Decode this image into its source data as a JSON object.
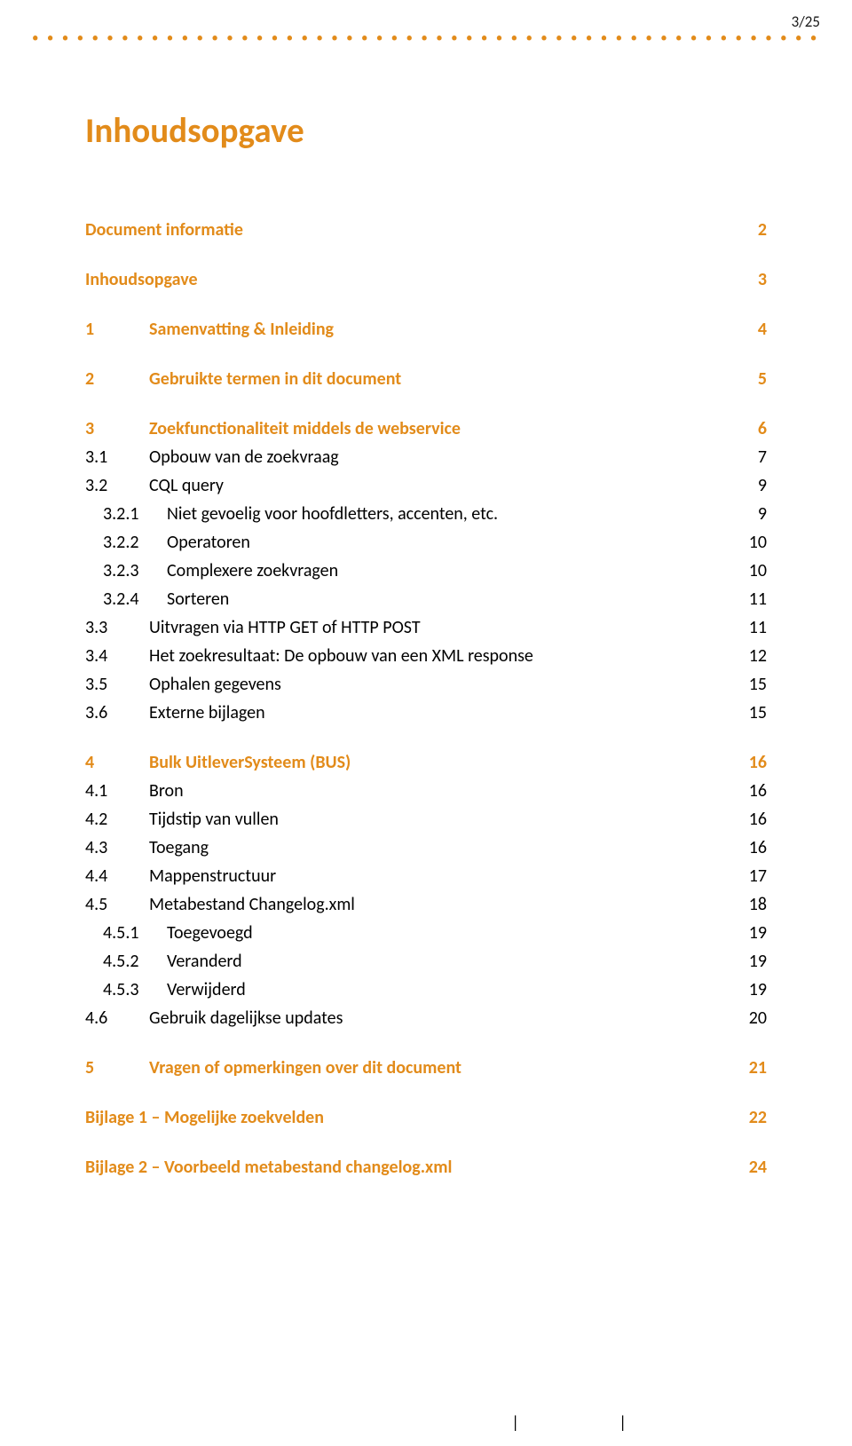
{
  "page_indicator": "3/25",
  "title": "Inhoudsopgave",
  "colors": {
    "accent": "#e28b1a",
    "text": "#000000",
    "background": "#ffffff"
  },
  "toc": {
    "groups": [
      {
        "top": {
          "num": "",
          "label": "Document informatie",
          "page": "2"
        },
        "items": []
      },
      {
        "top": {
          "num": "",
          "label": "Inhoudsopgave",
          "page": "3"
        },
        "items": []
      },
      {
        "top": {
          "num": "1",
          "label": "Samenvatting & Inleiding",
          "page": "4"
        },
        "items": []
      },
      {
        "top": {
          "num": "2",
          "label": "Gebruikte termen in dit document",
          "page": "5"
        },
        "items": []
      },
      {
        "top": {
          "num": "3",
          "label": "Zoekfunctionaliteit middels de webservice",
          "page": "6"
        },
        "items": [
          {
            "num": "3.1",
            "label": "Opbouw van de zoekvraag",
            "page": "7",
            "indent": 1
          },
          {
            "num": "3.2",
            "label": "CQL query",
            "page": "9",
            "indent": 1
          },
          {
            "num": "3.2.1",
            "label": "Niet gevoelig voor hoofdletters, accenten, etc.",
            "page": "9",
            "indent": 2
          },
          {
            "num": "3.2.2",
            "label": "Operatoren",
            "page": "10",
            "indent": 2
          },
          {
            "num": "3.2.3",
            "label": "Complexere zoekvragen",
            "page": "10",
            "indent": 2
          },
          {
            "num": "3.2.4",
            "label": "Sorteren",
            "page": "11",
            "indent": 2
          },
          {
            "num": "3.3",
            "label": "Uitvragen via HTTP GET of HTTP POST",
            "page": "11",
            "indent": 1
          },
          {
            "num": "3.4",
            "label": "Het zoekresultaat: De opbouw van een XML response",
            "page": "12",
            "indent": 1
          },
          {
            "num": "3.5",
            "label": "Ophalen gegevens",
            "page": "15",
            "indent": 1
          },
          {
            "num": "3.6",
            "label": "Externe bijlagen",
            "page": "15",
            "indent": 1
          }
        ]
      },
      {
        "top": {
          "num": "4",
          "label": "Bulk UitleverSysteem (BUS)",
          "page": "16"
        },
        "items": [
          {
            "num": "4.1",
            "label": "Bron",
            "page": "16",
            "indent": 1
          },
          {
            "num": "4.2",
            "label": "Tijdstip van vullen",
            "page": "16",
            "indent": 1
          },
          {
            "num": "4.3",
            "label": "Toegang",
            "page": "16",
            "indent": 1
          },
          {
            "num": "4.4",
            "label": "Mappenstructuur",
            "page": "17",
            "indent": 1
          },
          {
            "num": "4.5",
            "label": "Metabestand Changelog.xml",
            "page": "18",
            "indent": 1
          },
          {
            "num": "4.5.1",
            "label": "Toegevoegd",
            "page": "19",
            "indent": 2
          },
          {
            "num": "4.5.2",
            "label": "Veranderd",
            "page": "19",
            "indent": 2
          },
          {
            "num": "4.5.3",
            "label": "Verwijderd",
            "page": "19",
            "indent": 2
          },
          {
            "num": "4.6",
            "label": "Gebruik dagelijkse updates",
            "page": "20",
            "indent": 1
          }
        ]
      },
      {
        "top": {
          "num": "5",
          "label": "Vragen of opmerkingen over dit document",
          "page": "21"
        },
        "items": []
      },
      {
        "top": {
          "num": "",
          "label": "Bijlage 1 – Mogelijke zoekvelden",
          "page": "22"
        },
        "items": []
      },
      {
        "top": {
          "num": "",
          "label": "Bijlage 2 – Voorbeeld metabestand changelog.xml",
          "page": "24"
        },
        "items": []
      }
    ]
  },
  "footer_pipes": "| |"
}
